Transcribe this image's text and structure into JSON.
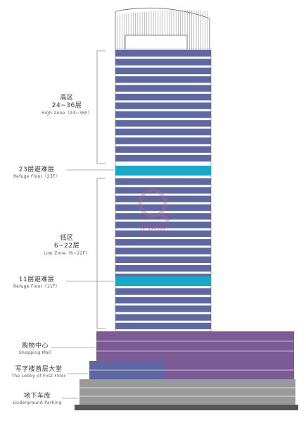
{
  "zones": {
    "high": {
      "cn": "高区",
      "floors": "24~36层",
      "en": "High Zone（24~36F）"
    },
    "refuge23": {
      "cn": "23层避难层",
      "en": "Refuge Floor（23F）"
    },
    "low": {
      "cn": "低区",
      "floors": "6~22层",
      "en": "Low Zone（6~22F）"
    },
    "refuge11": {
      "cn": "11层避难层",
      "en": "Refuge Floor（11F）"
    },
    "mall": {
      "cn": "购物中心",
      "en": "Shopping Mall"
    },
    "lobby": {
      "cn": "写字楼首层大堂",
      "en": "The Lobby of First Floor"
    },
    "parking": {
      "cn": "地下车库",
      "en": "Underground Parking"
    }
  },
  "watermark": "企房房",
  "colors": {
    "office_floor": "#6068a0",
    "refuge_floor": "#1aa8c8",
    "mall": "#7b5a96",
    "lobby_left": "#5e66a4",
    "parking": "#9a9a9a",
    "ground": "#555555",
    "leader": "#999999"
  }
}
